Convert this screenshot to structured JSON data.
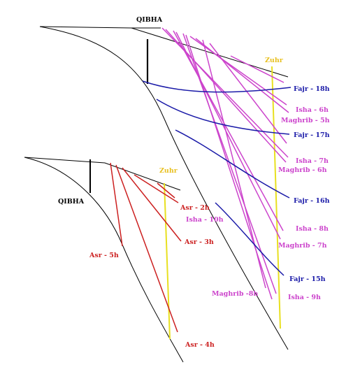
{
  "colors": {
    "outline": "#000000",
    "fajr": "#1a1aa8",
    "isha_maghrib": "#cc44cc",
    "asr": "#cc2020",
    "zuhr": "#e8e020"
  },
  "diagram_large": {
    "qibha_label": "QIBHA",
    "zuhr_label": "Zuhr",
    "fajr_labels": [
      "Fajr - 18h",
      "Fajr - 17h",
      "Fajr - 16h",
      "Fajr - 15h"
    ],
    "isha_labels": [
      "Isha - 6h",
      "Isha - 7h",
      "Isha - 8h",
      "Isha - 9h"
    ],
    "maghrib_labels": [
      "Maghrib - 5h",
      "Maghrib - 6h",
      "Maghrib - 7h",
      "Maghrib -8h"
    ]
  },
  "diagram_small": {
    "qibha_label": "QIBHA",
    "zuhr_label": "Zuhr",
    "asr_labels": [
      "Asr - 2h",
      "Asr - 3h",
      "Asr - 4h",
      "Asr - 5h"
    ],
    "isha_label": "Isha - 10h"
  }
}
